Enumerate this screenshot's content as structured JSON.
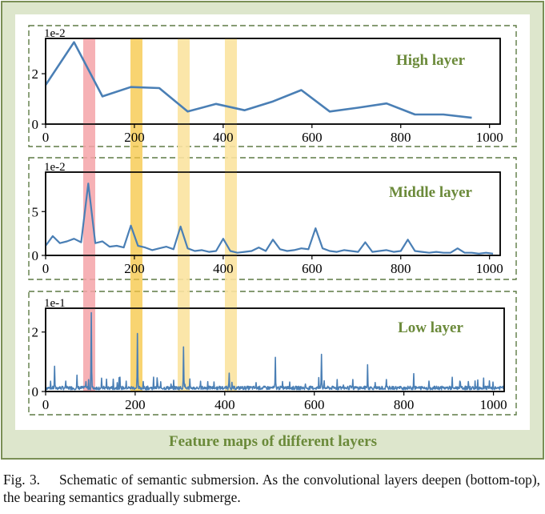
{
  "figure": {
    "bottom_title": "Feature maps of different layers",
    "colors": {
      "outer_fill": "#dde6cc",
      "outer_stroke": "#7a8f55",
      "inner_fill": "#ffffff",
      "dash_stroke": "#5e7a45",
      "line": "#4a7fb5",
      "title_text": "#6b8a3a",
      "red_band": "#f4a3a8",
      "yellow_band": "#f5c542",
      "light_yellow_band": "#fbe3a0"
    }
  },
  "caption": {
    "label": "Fig. 3.",
    "text": "Schematic of semantic submersion. As the convolutional layers deepen (bottom-top), the bearing semantics gradually submerge."
  },
  "chart_data": [
    {
      "type": "line",
      "title": "High layer",
      "scale_label": "1e-2",
      "xlim": [
        0,
        1024
      ],
      "ylim": [
        0,
        3.4
      ],
      "xticks": [
        "0",
        "200",
        "400",
        "600",
        "800",
        "1000"
      ],
      "xtick_values": [
        0,
        200,
        400,
        600,
        800,
        1000
      ],
      "yticks": [
        "0",
        "2"
      ],
      "ytick_values": [
        0,
        2
      ],
      "x": [
        0,
        64,
        128,
        192,
        256,
        320,
        384,
        448,
        512,
        576,
        640,
        704,
        768,
        832,
        896,
        960
      ],
      "values": [
        1.55,
        3.25,
        1.1,
        1.47,
        1.43,
        0.5,
        0.8,
        0.55,
        0.9,
        1.35,
        0.5,
        0.65,
        0.82,
        0.38,
        0.38,
        0.25
      ]
    },
    {
      "type": "line",
      "title": "Middle layer",
      "scale_label": "1e-2",
      "xlim": [
        0,
        1024
      ],
      "ylim": [
        0,
        9.5
      ],
      "xticks": [
        "0",
        "200",
        "400",
        "600",
        "800",
        "1000"
      ],
      "xtick_values": [
        0,
        200,
        400,
        600,
        800,
        1000
      ],
      "yticks": [
        "0",
        "5"
      ],
      "ytick_values": [
        0,
        5
      ],
      "x": [
        0,
        16,
        32,
        48,
        64,
        80,
        96,
        112,
        128,
        144,
        160,
        176,
        192,
        208,
        224,
        240,
        256,
        272,
        288,
        304,
        320,
        336,
        352,
        368,
        384,
        400,
        416,
        432,
        448,
        464,
        480,
        496,
        512,
        528,
        544,
        560,
        576,
        592,
        608,
        624,
        640,
        656,
        672,
        688,
        704,
        720,
        736,
        752,
        768,
        784,
        800,
        816,
        832,
        848,
        864,
        880,
        896,
        912,
        928,
        944,
        960,
        976,
        992,
        1008
      ],
      "values": [
        1.1,
        2.2,
        1.4,
        1.6,
        1.9,
        1.5,
        8.2,
        1.4,
        1.6,
        1.0,
        1.1,
        0.9,
        3.4,
        1.1,
        0.9,
        0.6,
        0.8,
        1.0,
        0.7,
        3.3,
        0.8,
        0.5,
        0.6,
        0.4,
        0.5,
        1.9,
        0.5,
        0.3,
        0.4,
        0.5,
        0.9,
        0.5,
        1.8,
        0.7,
        0.5,
        0.6,
        0.8,
        0.7,
        3.1,
        0.8,
        0.5,
        0.4,
        0.6,
        0.5,
        0.4,
        1.5,
        0.4,
        0.5,
        0.6,
        0.4,
        0.5,
        1.8,
        0.5,
        0.4,
        0.3,
        0.4,
        0.3,
        0.3,
        0.8,
        0.3,
        0.3,
        0.2,
        0.3,
        0.2
      ]
    },
    {
      "type": "line",
      "title": "Low layer",
      "scale_label": "1e-1",
      "xlim": [
        0,
        1024
      ],
      "ylim": [
        0,
        2.8
      ],
      "xticks": [
        "0",
        "200",
        "400",
        "600",
        "800",
        "1000"
      ],
      "xtick_values": [
        0,
        200,
        400,
        600,
        800,
        1000
      ],
      "yticks": [
        "0",
        "2"
      ],
      "ytick_values": [
        0,
        2
      ],
      "n_points": 1024,
      "baseline": 0.12,
      "peaks": [
        {
          "x": 102,
          "value": 2.65
        },
        {
          "x": 205,
          "value": 1.95
        },
        {
          "x": 308,
          "value": 1.5
        },
        {
          "x": 410,
          "value": 0.62
        },
        {
          "x": 513,
          "value": 1.15
        },
        {
          "x": 616,
          "value": 1.25
        },
        {
          "x": 719,
          "value": 0.9
        },
        {
          "x": 822,
          "value": 0.6
        },
        {
          "x": 925,
          "value": 0.35
        },
        {
          "x": 20,
          "value": 0.85
        },
        {
          "x": 45,
          "value": 0.35
        },
        {
          "x": 70,
          "value": 0.55
        },
        {
          "x": 125,
          "value": 0.45
        },
        {
          "x": 160,
          "value": 0.3
        },
        {
          "x": 180,
          "value": 0.35
        },
        {
          "x": 250,
          "value": 0.3
        },
        {
          "x": 280,
          "value": 0.25
        },
        {
          "x": 470,
          "value": 0.3
        },
        {
          "x": 580,
          "value": 0.25
        },
        {
          "x": 680,
          "value": 0.2
        },
        {
          "x": 760,
          "value": 0.2
        }
      ]
    }
  ]
}
